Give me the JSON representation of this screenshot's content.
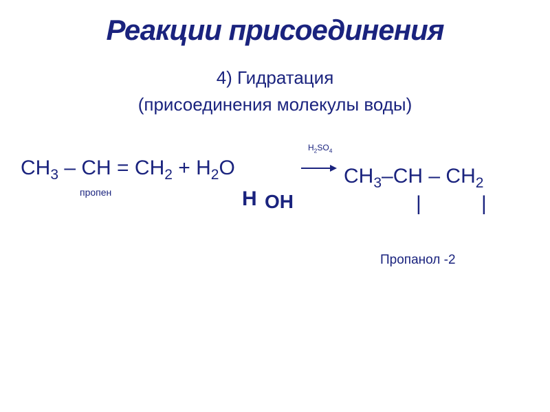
{
  "title": "Реакции присоединения",
  "subtitle": "4) Гидратация",
  "subnote": "(присоединения молекулы воды)",
  "reaction": {
    "reactant_formula": "CH<sub>3</sub> – CH = CH<sub>2</sub> + H<sub>2</sub>O",
    "reactant_label": "пропен",
    "water_h": "H",
    "water_oh": "OH",
    "catalyst": "H<sub>2</sub>SO<sub>4</sub>",
    "product_formula": "CH<sub>3</sub>–CH – CH<sub>2</sub>",
    "bond1": "|",
    "bond2": "|",
    "product_label": "Пропанол -2"
  },
  "colors": {
    "text": "#1a237e",
    "background": "#ffffff"
  },
  "typography": {
    "title_fontsize": 42,
    "subtitle_fontsize": 26,
    "formula_fontsize": 30,
    "label_fontsize": 14
  }
}
